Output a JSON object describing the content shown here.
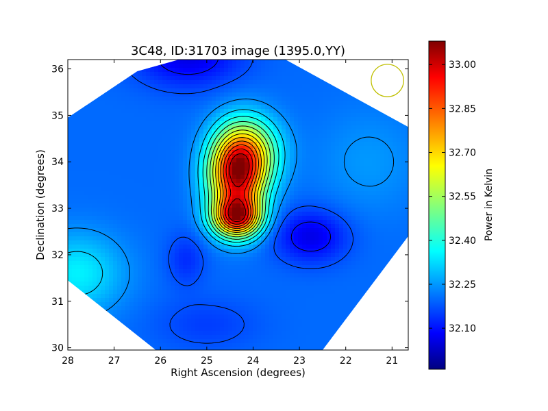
{
  "chart_data": {
    "type": "heatmap",
    "title": "3C48, ID:31703 image (1395.0,YY)",
    "xlabel": "Right Ascension (degrees)",
    "ylabel": "Declination (degrees)",
    "xlim": [
      28.0,
      20.65
    ],
    "ylim": [
      29.95,
      36.2
    ],
    "x_ticks": [
      28,
      27,
      26,
      25,
      24,
      23,
      22,
      21
    ],
    "y_ticks": [
      30,
      31,
      32,
      33,
      34,
      35,
      36
    ],
    "colorbar": {
      "label": "Power in Kelvin",
      "range": [
        31.96,
        33.08
      ],
      "ticks": [
        32.1,
        32.25,
        32.4,
        32.55,
        32.7,
        32.85,
        33.0
      ],
      "tick_labels": [
        "32.10",
        "32.25",
        "32.40",
        "32.55",
        "32.70",
        "32.85",
        "33.00"
      ],
      "colormap": "jet"
    },
    "colormap_stops": [
      "#000080",
      "#0000ff",
      "#00ffff",
      "#ffff00",
      "#ff0000",
      "#800000"
    ],
    "background_level": 32.2,
    "field_components": [
      {
        "ra": 24.35,
        "dec": 33.75,
        "amp": 0.78,
        "sra": 0.42,
        "sdec": 0.62
      },
      {
        "ra": 24.0,
        "dec": 34.25,
        "amp": 0.25,
        "sra": 0.45,
        "sdec": 0.5
      },
      {
        "ra": 24.35,
        "dec": 32.8,
        "amp": 0.65,
        "sra": 0.36,
        "sdec": 0.3
      },
      {
        "ra": 22.75,
        "dec": 32.4,
        "amp": -0.14,
        "sra": 0.55,
        "sdec": 0.4
      },
      {
        "ra": 25.4,
        "dec": 36.25,
        "amp": -0.14,
        "sra": 0.8,
        "sdec": 0.45
      },
      {
        "ra": 27.8,
        "dec": 31.6,
        "amp": 0.15,
        "sra": 0.7,
        "sdec": 0.6
      },
      {
        "ra": 25.45,
        "dec": 31.9,
        "amp": -0.07,
        "sra": 0.3,
        "sdec": 0.4
      },
      {
        "ra": 21.5,
        "dec": 34.0,
        "amp": 0.05,
        "sra": 0.8,
        "sdec": 0.8
      },
      {
        "ra": 25.0,
        "dec": 30.5,
        "amp": -0.05,
        "sra": 0.8,
        "sdec": 0.4
      }
    ],
    "coverage_footprint": [
      [
        25.6,
        36.2
      ],
      [
        23.3,
        36.2
      ],
      [
        20.65,
        34.75
      ],
      [
        20.65,
        32.4
      ],
      [
        22.5,
        29.95
      ],
      [
        26.1,
        29.95
      ],
      [
        28.0,
        31.45
      ],
      [
        28.0,
        34.95
      ],
      [
        26.5,
        35.95
      ]
    ],
    "beam": {
      "ra": 21.1,
      "dec": 35.75,
      "radius_deg": 0.35,
      "color": "#bfbf00"
    },
    "contour_color": "#000000"
  }
}
